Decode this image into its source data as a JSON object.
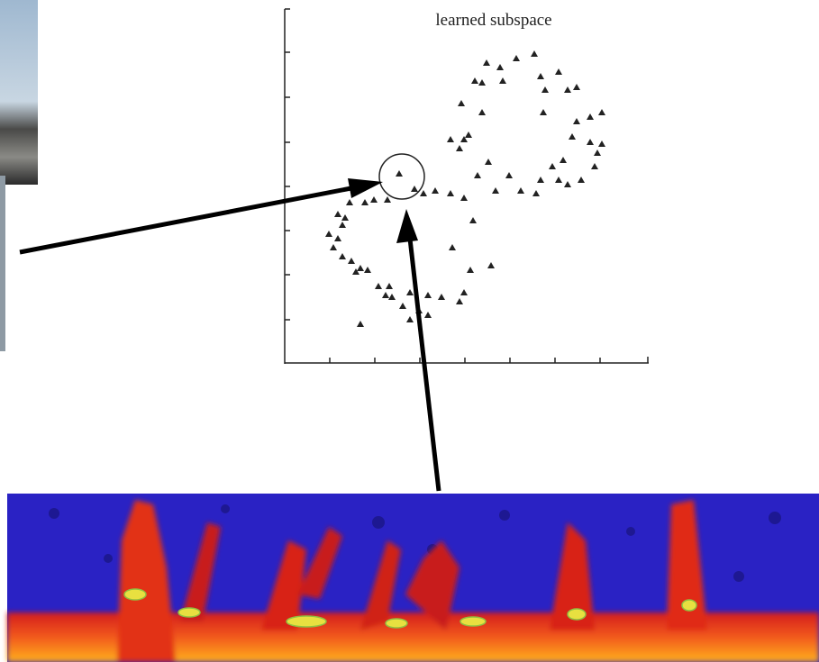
{
  "figure": {
    "title": "learned subspace"
  }
}
